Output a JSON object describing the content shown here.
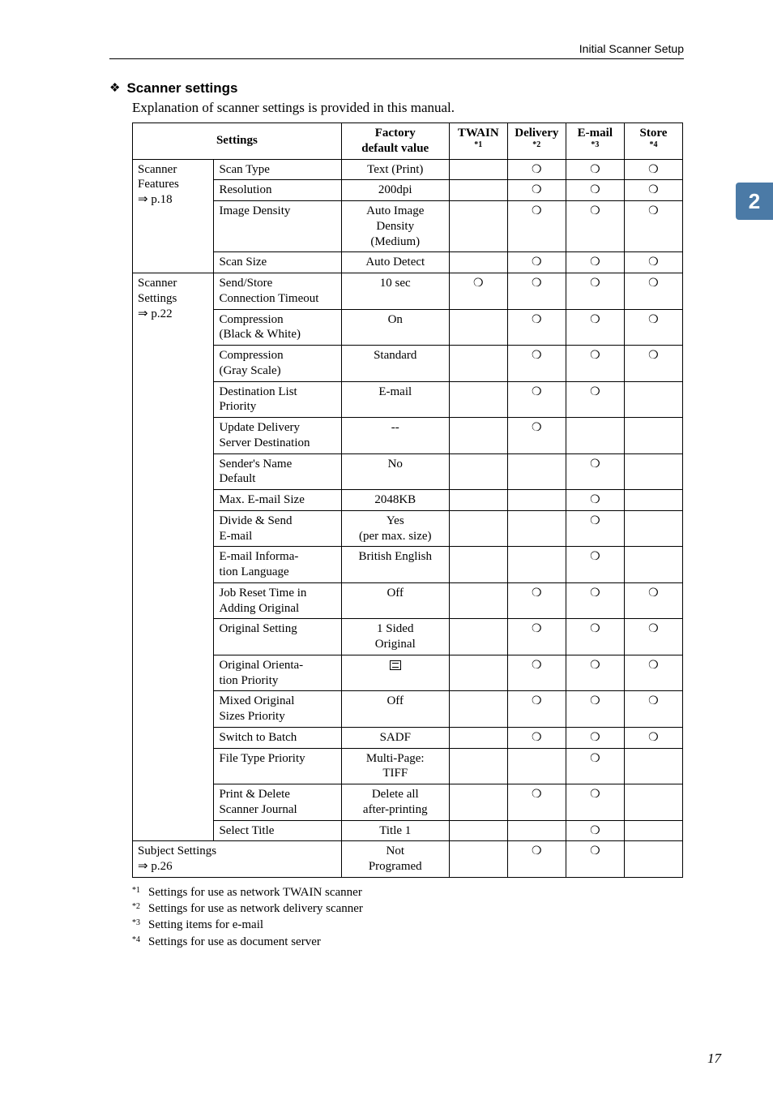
{
  "header": {
    "right": "Initial Scanner Setup"
  },
  "tab": {
    "number": "2",
    "bg": "#4b7aa6"
  },
  "page_number": "17",
  "section": {
    "diamond": "❖",
    "title": "Scanner settings",
    "intro": "Explanation of scanner settings is provided in this manual."
  },
  "circle": "❍",
  "table": {
    "head": {
      "settings": "Settings",
      "factory": "Factory",
      "factory_sub": "default value",
      "twain": "TWAIN",
      "twain_sup": "*1",
      "delivery": "Delivery",
      "delivery_sup": "*2",
      "email": "E-mail",
      "email_sup": "*3",
      "store": "Store",
      "store_sup": "*4"
    },
    "groups": [
      {
        "label_lines": [
          "Scanner",
          "Features",
          "⇒ p.18"
        ],
        "rows": [
          {
            "name": "Scan Type",
            "default": "Text (Print)",
            "t": false,
            "d": true,
            "e": true,
            "s": true
          },
          {
            "name": "Resolution",
            "default": "200dpi",
            "t": false,
            "d": true,
            "e": true,
            "s": true
          },
          {
            "name": "Image Density",
            "default": "Auto Image\nDensity\n(Medium)",
            "t": false,
            "d": true,
            "e": true,
            "s": true
          },
          {
            "name": "Scan Size",
            "default": "Auto Detect",
            "t": false,
            "d": true,
            "e": true,
            "s": true
          }
        ]
      },
      {
        "label_lines": [
          "Scanner",
          "Settings",
          "⇒ p.22"
        ],
        "rows": [
          {
            "name": "Send/Store\nConnection Timeout",
            "default": "10 sec",
            "t": true,
            "d": true,
            "e": true,
            "s": true
          },
          {
            "name": "Compression\n(Black & White)",
            "default": "On",
            "t": false,
            "d": true,
            "e": true,
            "s": true
          },
          {
            "name": "Compression\n(Gray Scale)",
            "default": "Standard",
            "t": false,
            "d": true,
            "e": true,
            "s": true
          },
          {
            "name": "Destination List\nPriority",
            "default": "E-mail",
            "t": false,
            "d": true,
            "e": true,
            "s": false
          },
          {
            "name": "Update Delivery\nServer Destination",
            "default": "--",
            "t": false,
            "d": true,
            "e": false,
            "s": false
          },
          {
            "name": "Sender's Name\nDefault",
            "default": "No",
            "t": false,
            "d": false,
            "e": true,
            "s": false
          },
          {
            "name": "Max. E-mail Size",
            "default": "2048KB",
            "t": false,
            "d": false,
            "e": true,
            "s": false
          },
          {
            "name": "Divide & Send\nE-mail",
            "default": "Yes\n(per max. size)",
            "t": false,
            "d": false,
            "e": true,
            "s": false
          },
          {
            "name": "E-mail Informa-\ntion Language",
            "default": "British English",
            "t": false,
            "d": false,
            "e": true,
            "s": false
          },
          {
            "name": "Job Reset Time in\nAdding Original",
            "default": "Off",
            "t": false,
            "d": true,
            "e": true,
            "s": true
          },
          {
            "name": "Original Setting",
            "default": "1 Sided\nOriginal",
            "t": false,
            "d": true,
            "e": true,
            "s": true
          },
          {
            "name": "Original Orienta-\ntion Priority",
            "default": "__ORIENT_ICON__",
            "t": false,
            "d": true,
            "e": true,
            "s": true
          },
          {
            "name": "Mixed Original\nSizes Priority",
            "default": "Off",
            "t": false,
            "d": true,
            "e": true,
            "s": true
          },
          {
            "name": "Switch to Batch",
            "default": "SADF",
            "t": false,
            "d": true,
            "e": true,
            "s": true
          },
          {
            "name": "File Type Priority",
            "default": "Multi-Page:\nTIFF",
            "t": false,
            "d": false,
            "e": true,
            "s": false
          },
          {
            "name": "Print & Delete\nScanner Journal",
            "default": "Delete all\nafter-printing",
            "t": false,
            "d": true,
            "e": true,
            "s": false
          },
          {
            "name": "Select Title",
            "default": "Title 1",
            "t": false,
            "d": false,
            "e": true,
            "s": false
          }
        ]
      }
    ],
    "subject": {
      "label_lines": [
        "Subject Settings",
        "⇒ p.26"
      ],
      "default": "Not\nProgramed",
      "t": false,
      "d": true,
      "e": true,
      "s": false
    }
  },
  "footnotes": [
    {
      "mark": "*1",
      "text": "Settings for use as network TWAIN scanner"
    },
    {
      "mark": "*2",
      "text": "Settings for use as network delivery scanner"
    },
    {
      "mark": "*3",
      "text": "Setting items for e-mail"
    },
    {
      "mark": "*4",
      "text": "Settings for use as document server"
    }
  ]
}
